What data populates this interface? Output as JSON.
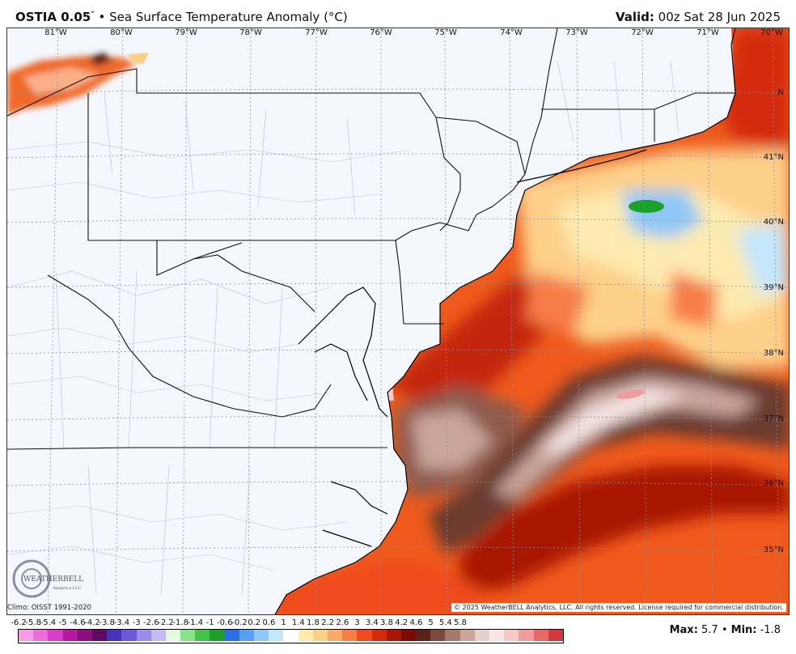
{
  "header": {
    "model": "OSTIA 0.05",
    "degree": "°",
    "product": " • Sea Surface Temperature Anomaly (°C)",
    "valid_label": "Valid:",
    "valid_value": " 00z Sat 28 Jun 2025"
  },
  "axes": {
    "lon_labels": [
      "81°W",
      "80°W",
      "79°W",
      "78°W",
      "77°W",
      "76°W",
      "75°W",
      "74°W",
      "73°W",
      "72°W",
      "71°W",
      "70°W"
    ],
    "lat_labels": [
      "41°N",
      "40°N",
      "39°N",
      "38°N",
      "37°N",
      "36°N",
      "35°N"
    ],
    "lat_label_partial": "N"
  },
  "footer": {
    "climo": "Climo: OISST 1991-2020",
    "copyright": "© 2025 WeatherBELL Analytics, LLC. All rights reserved. License required for commercial distribution.",
    "logo_text": "WEATHERBELL",
    "logo_sub": "Analytics LLC",
    "max_label": "Max:",
    "max_value": " 5.7",
    "sep": " • ",
    "min_label": "Min:",
    "min_value": " -1.8"
  },
  "colorbar": {
    "ticks": [
      "-6.2",
      "-5.8",
      "-5.4",
      "-5",
      "-4.6",
      "-4.2",
      "-3.8",
      "-3.4",
      "-3",
      "-2.6",
      "-2.2",
      "-1.8",
      "-1.4",
      "-1",
      "-0.6",
      "-0.2",
      "0.2",
      "0.6",
      "1",
      "1.4",
      "1.8",
      "2.2",
      "2.6",
      "3",
      "3.4",
      "3.8",
      "4.2",
      "4.6",
      "5",
      "5.4",
      "5.8"
    ],
    "colors": [
      "#f59ce5",
      "#ec6fd8",
      "#d93ec6",
      "#b2199e",
      "#8a0f7a",
      "#5e0a62",
      "#4a32b8",
      "#6a5ad8",
      "#9a8ce8",
      "#c4bbf2",
      "#e2fbe2",
      "#86e38a",
      "#45c24a",
      "#1e9e2a",
      "#2b6fe0",
      "#5aa0f0",
      "#8fc8f8",
      "#c3e6fb",
      "#ffffff",
      "#fdebb0",
      "#fdd08a",
      "#fbaa6a",
      "#f77d46",
      "#ef4b1e",
      "#d32a0c",
      "#a81406",
      "#7a0a04",
      "#5a2218",
      "#7b4a3e",
      "#a57a6e",
      "#c9a59b",
      "#e6d0cb",
      "#f6e6e6",
      "#f8c8c8",
      "#f19c9c",
      "#e46a6a",
      "#cf3b3b"
    ]
  },
  "colors": {
    "land": "#f4f7fd",
    "border": "#000000",
    "county": "#b9bfcc"
  }
}
